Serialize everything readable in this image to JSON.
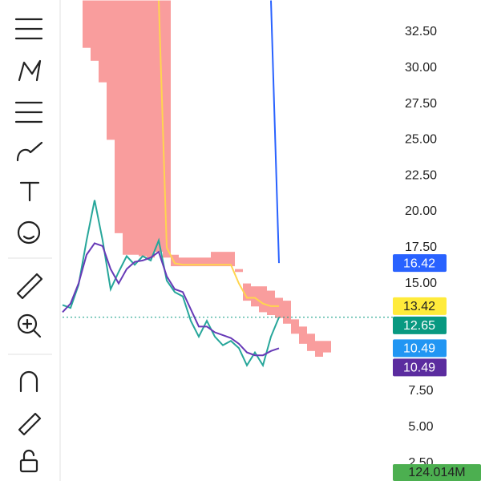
{
  "chart_data": {
    "type": "line",
    "categories": [
      null,
      null,
      null,
      null,
      null,
      null,
      null,
      null,
      null,
      null,
      null,
      null,
      null,
      null,
      null,
      null,
      null,
      null,
      null,
      null,
      null,
      null,
      null,
      null,
      null,
      null,
      null,
      null,
      null,
      null,
      null,
      null,
      null,
      null
    ],
    "ylim": [
      1.25,
      34.73
    ],
    "yticks": [
      {
        "value": 32.5,
        "label": "32.50"
      },
      {
        "value": 30,
        "label": "30.00"
      },
      {
        "value": 27.5,
        "label": "27.50"
      },
      {
        "value": 25,
        "label": "25.00"
      },
      {
        "value": 22.5,
        "label": "22.50"
      },
      {
        "value": 20,
        "label": "20.00"
      },
      {
        "value": 17.5,
        "label": "17.50"
      },
      {
        "value": 15,
        "label": "15.00"
      },
      {
        "value": 7.5,
        "label": "7.50"
      },
      {
        "value": 5,
        "label": "5.00"
      },
      {
        "value": 2.5,
        "label": "2.50"
      }
    ],
    "cloud": {
      "color": "#f77c7c",
      "top": [
        null,
        null,
        null,
        34.7,
        34.7,
        34.7,
        34.7,
        34.7,
        34.7,
        34.7,
        34.7,
        34.7,
        34.7,
        34.7,
        17.0,
        16.8,
        16.8,
        16.8,
        16.8,
        17.2,
        17.2,
        17.2,
        16.0,
        15.0,
        14.8,
        14.8,
        14.5,
        14.0,
        13.8,
        12.5,
        12.0,
        11.5,
        11.0,
        11.0
      ],
      "bottom": [
        null,
        null,
        null,
        31.4,
        30.5,
        29.0,
        25.0,
        18.5,
        17.0,
        17.0,
        16.9,
        16.8,
        17.2,
        16.8,
        16.2,
        16.2,
        16.2,
        16.2,
        16.2,
        16.2,
        16.2,
        16.2,
        15.8,
        13.8,
        13.4,
        13.0,
        12.8,
        12.6,
        12.2,
        11.5,
        10.8,
        10.3,
        9.9,
        10.2
      ]
    },
    "series": [
      {
        "color": "#26a69a",
        "values": [
          13.5,
          13.3,
          14.9,
          18.0,
          20.8,
          18.0,
          14.6,
          15.8,
          16.9,
          16.3,
          16.9,
          16.6,
          18.0,
          15.2,
          14.4,
          14.1,
          12.4,
          11.3,
          12.4,
          11.3,
          10.7,
          11.0,
          10.5,
          9.3,
          10.2,
          9.3,
          11.3,
          12.65,
          null,
          null,
          null,
          null,
          null,
          null
        ]
      },
      {
        "color": "#673ab7",
        "values": [
          13.0,
          13.6,
          15.0,
          17.0,
          17.8,
          17.6,
          16.0,
          15.0,
          16.0,
          16.5,
          16.6,
          16.8,
          17.2,
          15.5,
          14.6,
          14.4,
          13.2,
          12.0,
          12.0,
          11.6,
          11.4,
          11.2,
          10.8,
          10.2,
          10.0,
          10.0,
          10.3,
          10.49,
          null,
          null,
          null,
          null,
          null,
          null
        ]
      },
      {
        "color": "#ffd54f",
        "values": [
          null,
          null,
          null,
          null,
          null,
          null,
          null,
          null,
          null,
          null,
          null,
          null,
          34.7,
          17.5,
          16.4,
          16.3,
          16.3,
          16.3,
          16.3,
          16.3,
          16.3,
          16.3,
          15.0,
          14.0,
          14.0,
          13.6,
          13.42,
          13.42,
          null,
          null,
          null,
          null,
          null,
          null
        ]
      },
      {
        "color": "#2962ff",
        "values": [
          null,
          null,
          null,
          null,
          null,
          null,
          null,
          null,
          null,
          null,
          null,
          null,
          null,
          null,
          null,
          null,
          null,
          null,
          null,
          null,
          null,
          null,
          null,
          null,
          null,
          null,
          34.7,
          16.42,
          null,
          null,
          null,
          null,
          null,
          null
        ]
      }
    ],
    "last_price": 12.65,
    "price_labels": [
      {
        "value": 16.42,
        "label": "16.42",
        "color": "#2962ff",
        "text_color": "#ffffff"
      },
      {
        "value": 13.42,
        "label": "13.42",
        "color": "#ffeb3b",
        "text_color": "#222222"
      },
      {
        "value": 12.65,
        "label": "12.65",
        "color": "#089981",
        "text_color": "#ffffff"
      },
      {
        "value": 10.49,
        "label": "10.49",
        "color": "#2196f3",
        "text_color": "#ffffff"
      },
      {
        "value": 10.49,
        "label": "10.49",
        "color": "#5b2c9f",
        "text_color": "#ffffff"
      }
    ],
    "volume_label": "124.014M"
  }
}
